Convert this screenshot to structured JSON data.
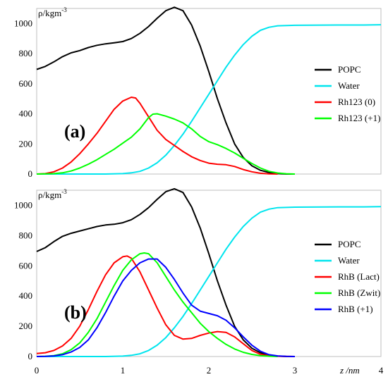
{
  "chart_data": [
    {
      "type": "line",
      "panel_label": "(a)",
      "ylabel": "ρ/kgm",
      "ylabel_sup": "-3",
      "xlabel": "",
      "xlim": [
        0,
        4
      ],
      "ylim": [
        0,
        1100
      ],
      "yticks": [
        "0",
        "200",
        "400",
        "600",
        "800",
        "1000"
      ],
      "legend_position": "right",
      "series": [
        {
          "name": "POPC",
          "color": "#000000",
          "points": [
            [
              0,
              695
            ],
            [
              0.1,
              715
            ],
            [
              0.2,
              745
            ],
            [
              0.3,
              780
            ],
            [
              0.4,
              805
            ],
            [
              0.5,
              820
            ],
            [
              0.6,
              840
            ],
            [
              0.7,
              855
            ],
            [
              0.8,
              865
            ],
            [
              0.9,
              872
            ],
            [
              1.0,
              880
            ],
            [
              1.1,
              900
            ],
            [
              1.2,
              935
            ],
            [
              1.3,
              980
            ],
            [
              1.4,
              1035
            ],
            [
              1.5,
              1085
            ],
            [
              1.6,
              1108
            ],
            [
              1.7,
              1085
            ],
            [
              1.8,
              990
            ],
            [
              1.9,
              850
            ],
            [
              2.0,
              680
            ],
            [
              2.1,
              500
            ],
            [
              2.2,
              340
            ],
            [
              2.3,
              200
            ],
            [
              2.4,
              110
            ],
            [
              2.5,
              55
            ],
            [
              2.6,
              25
            ],
            [
              2.7,
              10
            ],
            [
              2.8,
              3
            ],
            [
              2.9,
              0
            ],
            [
              3.0,
              0
            ]
          ]
        },
        {
          "name": "Water",
          "color": "#00e5ee",
          "points": [
            [
              0,
              0
            ],
            [
              0.8,
              0
            ],
            [
              1.0,
              3
            ],
            [
              1.1,
              8
            ],
            [
              1.2,
              18
            ],
            [
              1.3,
              40
            ],
            [
              1.4,
              75
            ],
            [
              1.5,
              125
            ],
            [
              1.6,
              190
            ],
            [
              1.7,
              265
            ],
            [
              1.8,
              350
            ],
            [
              1.9,
              440
            ],
            [
              2.0,
              530
            ],
            [
              2.1,
              620
            ],
            [
              2.2,
              710
            ],
            [
              2.3,
              790
            ],
            [
              2.4,
              860
            ],
            [
              2.5,
              915
            ],
            [
              2.6,
              955
            ],
            [
              2.7,
              975
            ],
            [
              2.8,
              985
            ],
            [
              3.0,
              988
            ],
            [
              3.5,
              990
            ],
            [
              3.8,
              990
            ],
            [
              4.0,
              992
            ]
          ]
        },
        {
          "name": "Rh123 (0)",
          "color": "#ff0000",
          "points": [
            [
              0,
              0
            ],
            [
              0.1,
              3
            ],
            [
              0.2,
              15
            ],
            [
              0.3,
              40
            ],
            [
              0.4,
              80
            ],
            [
              0.5,
              135
            ],
            [
              0.6,
              200
            ],
            [
              0.7,
              270
            ],
            [
              0.8,
              350
            ],
            [
              0.9,
              430
            ],
            [
              1.0,
              485
            ],
            [
              1.1,
              510
            ],
            [
              1.15,
              505
            ],
            [
              1.2,
              470
            ],
            [
              1.3,
              380
            ],
            [
              1.4,
              290
            ],
            [
              1.5,
              230
            ],
            [
              1.6,
              190
            ],
            [
              1.7,
              150
            ],
            [
              1.8,
              115
            ],
            [
              1.9,
              90
            ],
            [
              2.0,
              72
            ],
            [
              2.1,
              65
            ],
            [
              2.2,
              62
            ],
            [
              2.3,
              50
            ],
            [
              2.4,
              30
            ],
            [
              2.5,
              15
            ],
            [
              2.6,
              5
            ],
            [
              2.7,
              1
            ],
            [
              2.8,
              0
            ]
          ]
        },
        {
          "name": "Rh123 (+1)",
          "color": "#00ff00",
          "points": [
            [
              0,
              0
            ],
            [
              0.1,
              1
            ],
            [
              0.2,
              3
            ],
            [
              0.3,
              8
            ],
            [
              0.4,
              20
            ],
            [
              0.5,
              40
            ],
            [
              0.6,
              65
            ],
            [
              0.7,
              95
            ],
            [
              0.8,
              130
            ],
            [
              0.9,
              165
            ],
            [
              1.0,
              205
            ],
            [
              1.1,
              245
            ],
            [
              1.2,
              300
            ],
            [
              1.3,
              375
            ],
            [
              1.35,
              398
            ],
            [
              1.4,
              400
            ],
            [
              1.5,
              385
            ],
            [
              1.6,
              365
            ],
            [
              1.7,
              340
            ],
            [
              1.8,
              300
            ],
            [
              1.9,
              250
            ],
            [
              2.0,
              215
            ],
            [
              2.1,
              195
            ],
            [
              2.2,
              170
            ],
            [
              2.3,
              140
            ],
            [
              2.4,
              105
            ],
            [
              2.5,
              70
            ],
            [
              2.6,
              40
            ],
            [
              2.7,
              18
            ],
            [
              2.8,
              7
            ],
            [
              2.9,
              2
            ],
            [
              3.0,
              0
            ]
          ]
        }
      ]
    },
    {
      "type": "line",
      "panel_label": "(b)",
      "ylabel": "ρ/kgm",
      "ylabel_sup": "-3",
      "xlabel": "z /nm",
      "xlim": [
        0,
        4
      ],
      "ylim": [
        0,
        1100
      ],
      "xticks": [
        "0",
        "1",
        "2",
        "3",
        "4"
      ],
      "yticks": [
        "0",
        "200",
        "400",
        "600",
        "800",
        "1000"
      ],
      "legend_position": "right",
      "series": [
        {
          "name": "POPC",
          "color": "#000000",
          "points": [
            [
              0,
              695
            ],
            [
              0.1,
              720
            ],
            [
              0.2,
              760
            ],
            [
              0.3,
              795
            ],
            [
              0.4,
              815
            ],
            [
              0.5,
              830
            ],
            [
              0.6,
              845
            ],
            [
              0.7,
              860
            ],
            [
              0.8,
              870
            ],
            [
              0.9,
              875
            ],
            [
              1.0,
              885
            ],
            [
              1.1,
              905
            ],
            [
              1.2,
              940
            ],
            [
              1.3,
              985
            ],
            [
              1.4,
              1040
            ],
            [
              1.5,
              1090
            ],
            [
              1.6,
              1110
            ],
            [
              1.7,
              1085
            ],
            [
              1.8,
              990
            ],
            [
              1.9,
              850
            ],
            [
              2.0,
              680
            ],
            [
              2.1,
              500
            ],
            [
              2.2,
              340
            ],
            [
              2.3,
              200
            ],
            [
              2.4,
              110
            ],
            [
              2.5,
              55
            ],
            [
              2.6,
              25
            ],
            [
              2.7,
              10
            ],
            [
              2.8,
              3
            ],
            [
              2.9,
              0
            ],
            [
              3.0,
              0
            ]
          ]
        },
        {
          "name": "Water",
          "color": "#00e5ee",
          "points": [
            [
              0,
              0
            ],
            [
              0.8,
              0
            ],
            [
              1.0,
              3
            ],
            [
              1.1,
              8
            ],
            [
              1.2,
              18
            ],
            [
              1.3,
              40
            ],
            [
              1.4,
              75
            ],
            [
              1.5,
              125
            ],
            [
              1.6,
              190
            ],
            [
              1.7,
              265
            ],
            [
              1.8,
              350
            ],
            [
              1.9,
              440
            ],
            [
              2.0,
              530
            ],
            [
              2.1,
              620
            ],
            [
              2.2,
              710
            ],
            [
              2.3,
              790
            ],
            [
              2.4,
              860
            ],
            [
              2.5,
              915
            ],
            [
              2.6,
              955
            ],
            [
              2.7,
              975
            ],
            [
              2.8,
              985
            ],
            [
              3.0,
              988
            ],
            [
              3.5,
              990
            ],
            [
              3.8,
              990
            ],
            [
              4.0,
              992
            ]
          ]
        },
        {
          "name": "RhB (Lact)",
          "color": "#ff0000",
          "points": [
            [
              0,
              20
            ],
            [
              0.1,
              25
            ],
            [
              0.2,
              40
            ],
            [
              0.3,
              70
            ],
            [
              0.4,
              120
            ],
            [
              0.5,
              200
            ],
            [
              0.6,
              310
            ],
            [
              0.7,
              430
            ],
            [
              0.8,
              540
            ],
            [
              0.9,
              620
            ],
            [
              1.0,
              660
            ],
            [
              1.05,
              665
            ],
            [
              1.1,
              650
            ],
            [
              1.2,
              560
            ],
            [
              1.3,
              440
            ],
            [
              1.4,
              320
            ],
            [
              1.5,
              210
            ],
            [
              1.6,
              140
            ],
            [
              1.7,
              115
            ],
            [
              1.8,
              120
            ],
            [
              1.9,
              140
            ],
            [
              2.0,
              155
            ],
            [
              2.1,
              165
            ],
            [
              2.2,
              160
            ],
            [
              2.3,
              130
            ],
            [
              2.4,
              85
            ],
            [
              2.5,
              40
            ],
            [
              2.6,
              15
            ],
            [
              2.7,
              5
            ],
            [
              2.8,
              2
            ],
            [
              3.0,
              0
            ]
          ]
        },
        {
          "name": "RhB (Zwit)",
          "color": "#00ff00",
          "points": [
            [
              0,
              0
            ],
            [
              0.1,
              2
            ],
            [
              0.2,
              6
            ],
            [
              0.3,
              18
            ],
            [
              0.4,
              45
            ],
            [
              0.5,
              90
            ],
            [
              0.6,
              160
            ],
            [
              0.7,
              250
            ],
            [
              0.8,
              360
            ],
            [
              0.9,
              470
            ],
            [
              1.0,
              570
            ],
            [
              1.1,
              640
            ],
            [
              1.2,
              680
            ],
            [
              1.25,
              685
            ],
            [
              1.3,
              680
            ],
            [
              1.4,
              620
            ],
            [
              1.5,
              530
            ],
            [
              1.6,
              440
            ],
            [
              1.7,
              360
            ],
            [
              1.8,
              290
            ],
            [
              1.9,
              220
            ],
            [
              2.0,
              165
            ],
            [
              2.1,
              120
            ],
            [
              2.2,
              80
            ],
            [
              2.3,
              50
            ],
            [
              2.4,
              28
            ],
            [
              2.5,
              14
            ],
            [
              2.6,
              6
            ],
            [
              2.7,
              2
            ],
            [
              2.8,
              0
            ]
          ]
        },
        {
          "name": "RhB (+1)",
          "color": "#0000ff",
          "points": [
            [
              0,
              0
            ],
            [
              0.1,
              1
            ],
            [
              0.2,
              4
            ],
            [
              0.3,
              12
            ],
            [
              0.4,
              30
            ],
            [
              0.5,
              60
            ],
            [
              0.6,
              110
            ],
            [
              0.7,
              190
            ],
            [
              0.8,
              290
            ],
            [
              0.9,
              400
            ],
            [
              1.0,
              500
            ],
            [
              1.1,
              570
            ],
            [
              1.2,
              620
            ],
            [
              1.3,
              645
            ],
            [
              1.4,
              645
            ],
            [
              1.5,
              590
            ],
            [
              1.6,
              510
            ],
            [
              1.7,
              420
            ],
            [
              1.8,
              340
            ],
            [
              1.9,
              300
            ],
            [
              2.0,
              285
            ],
            [
              2.1,
              270
            ],
            [
              2.2,
              240
            ],
            [
              2.3,
              190
            ],
            [
              2.4,
              130
            ],
            [
              2.5,
              75
            ],
            [
              2.6,
              35
            ],
            [
              2.7,
              12
            ],
            [
              2.8,
              4
            ],
            [
              2.9,
              1
            ],
            [
              3.0,
              0
            ]
          ]
        }
      ]
    }
  ]
}
